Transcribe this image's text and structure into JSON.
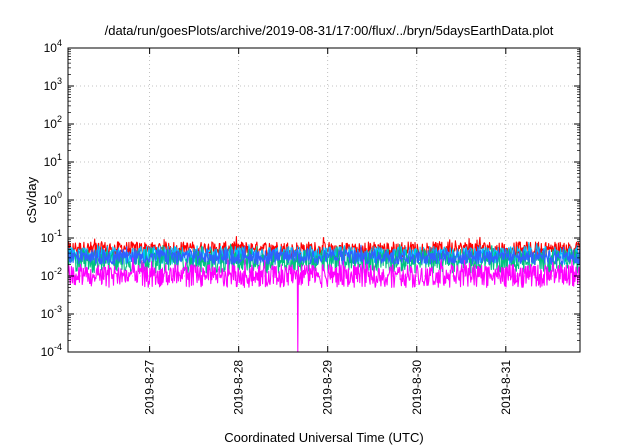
{
  "chart_data": {
    "type": "line",
    "title": "/data/run/goesPlots/archive/2019-08-31/17:00/flux/../bryn/5daysEarthData.plot",
    "xlabel": "Coordinated Universal Time (UTC)",
    "ylabel": "cSv/day",
    "y_scale": "log",
    "ylim": [
      0.0001,
      10000
    ],
    "xlim": [
      "2019-08-26 02:00",
      "2019-08-31 20:00"
    ],
    "grid": true,
    "x_ticks": [
      {
        "value": "2019-08-27",
        "label": "2019-8-27"
      },
      {
        "value": "2019-08-28",
        "label": "2019-8-28"
      },
      {
        "value": "2019-08-29",
        "label": "2019-8-29"
      },
      {
        "value": "2019-08-30",
        "label": "2019-8-30"
      },
      {
        "value": "2019-08-31",
        "label": "2019-8-31"
      }
    ],
    "y_ticks": [
      {
        "value": 0.0001,
        "base": "10",
        "exp": "-4"
      },
      {
        "value": 0.001,
        "base": "10",
        "exp": "-3"
      },
      {
        "value": 0.01,
        "base": "10",
        "exp": "-2"
      },
      {
        "value": 0.1,
        "base": "10",
        "exp": "-1"
      },
      {
        "value": 1,
        "base": "10",
        "exp": "0"
      },
      {
        "value": 10,
        "base": "10",
        "exp": "1"
      },
      {
        "value": 100,
        "base": "10",
        "exp": "2"
      },
      {
        "value": 1000,
        "base": "10",
        "exp": "3"
      },
      {
        "value": 10000,
        "base": "10",
        "exp": "4"
      }
    ],
    "series": [
      {
        "color": "#ff0000",
        "typical_low": 0.03,
        "typical_high": 0.08,
        "spike_max": 0.11
      },
      {
        "color": "#00bfff",
        "typical_low": 0.02,
        "typical_high": 0.06,
        "spike_max": 0.08
      },
      {
        "color": "#00c080",
        "typical_low": 0.012,
        "typical_high": 0.05,
        "spike_max": 0.07
      },
      {
        "color": "#3060ff",
        "typical_low": 0.02,
        "typical_high": 0.05,
        "spike_max": 0.07
      },
      {
        "color": "#ff00ff",
        "typical_low": 0.005,
        "typical_high": 0.02,
        "spike_max": 0.03,
        "dropout": {
          "time": "2019-08-28 16:00",
          "min": 0.0001
        }
      }
    ]
  }
}
